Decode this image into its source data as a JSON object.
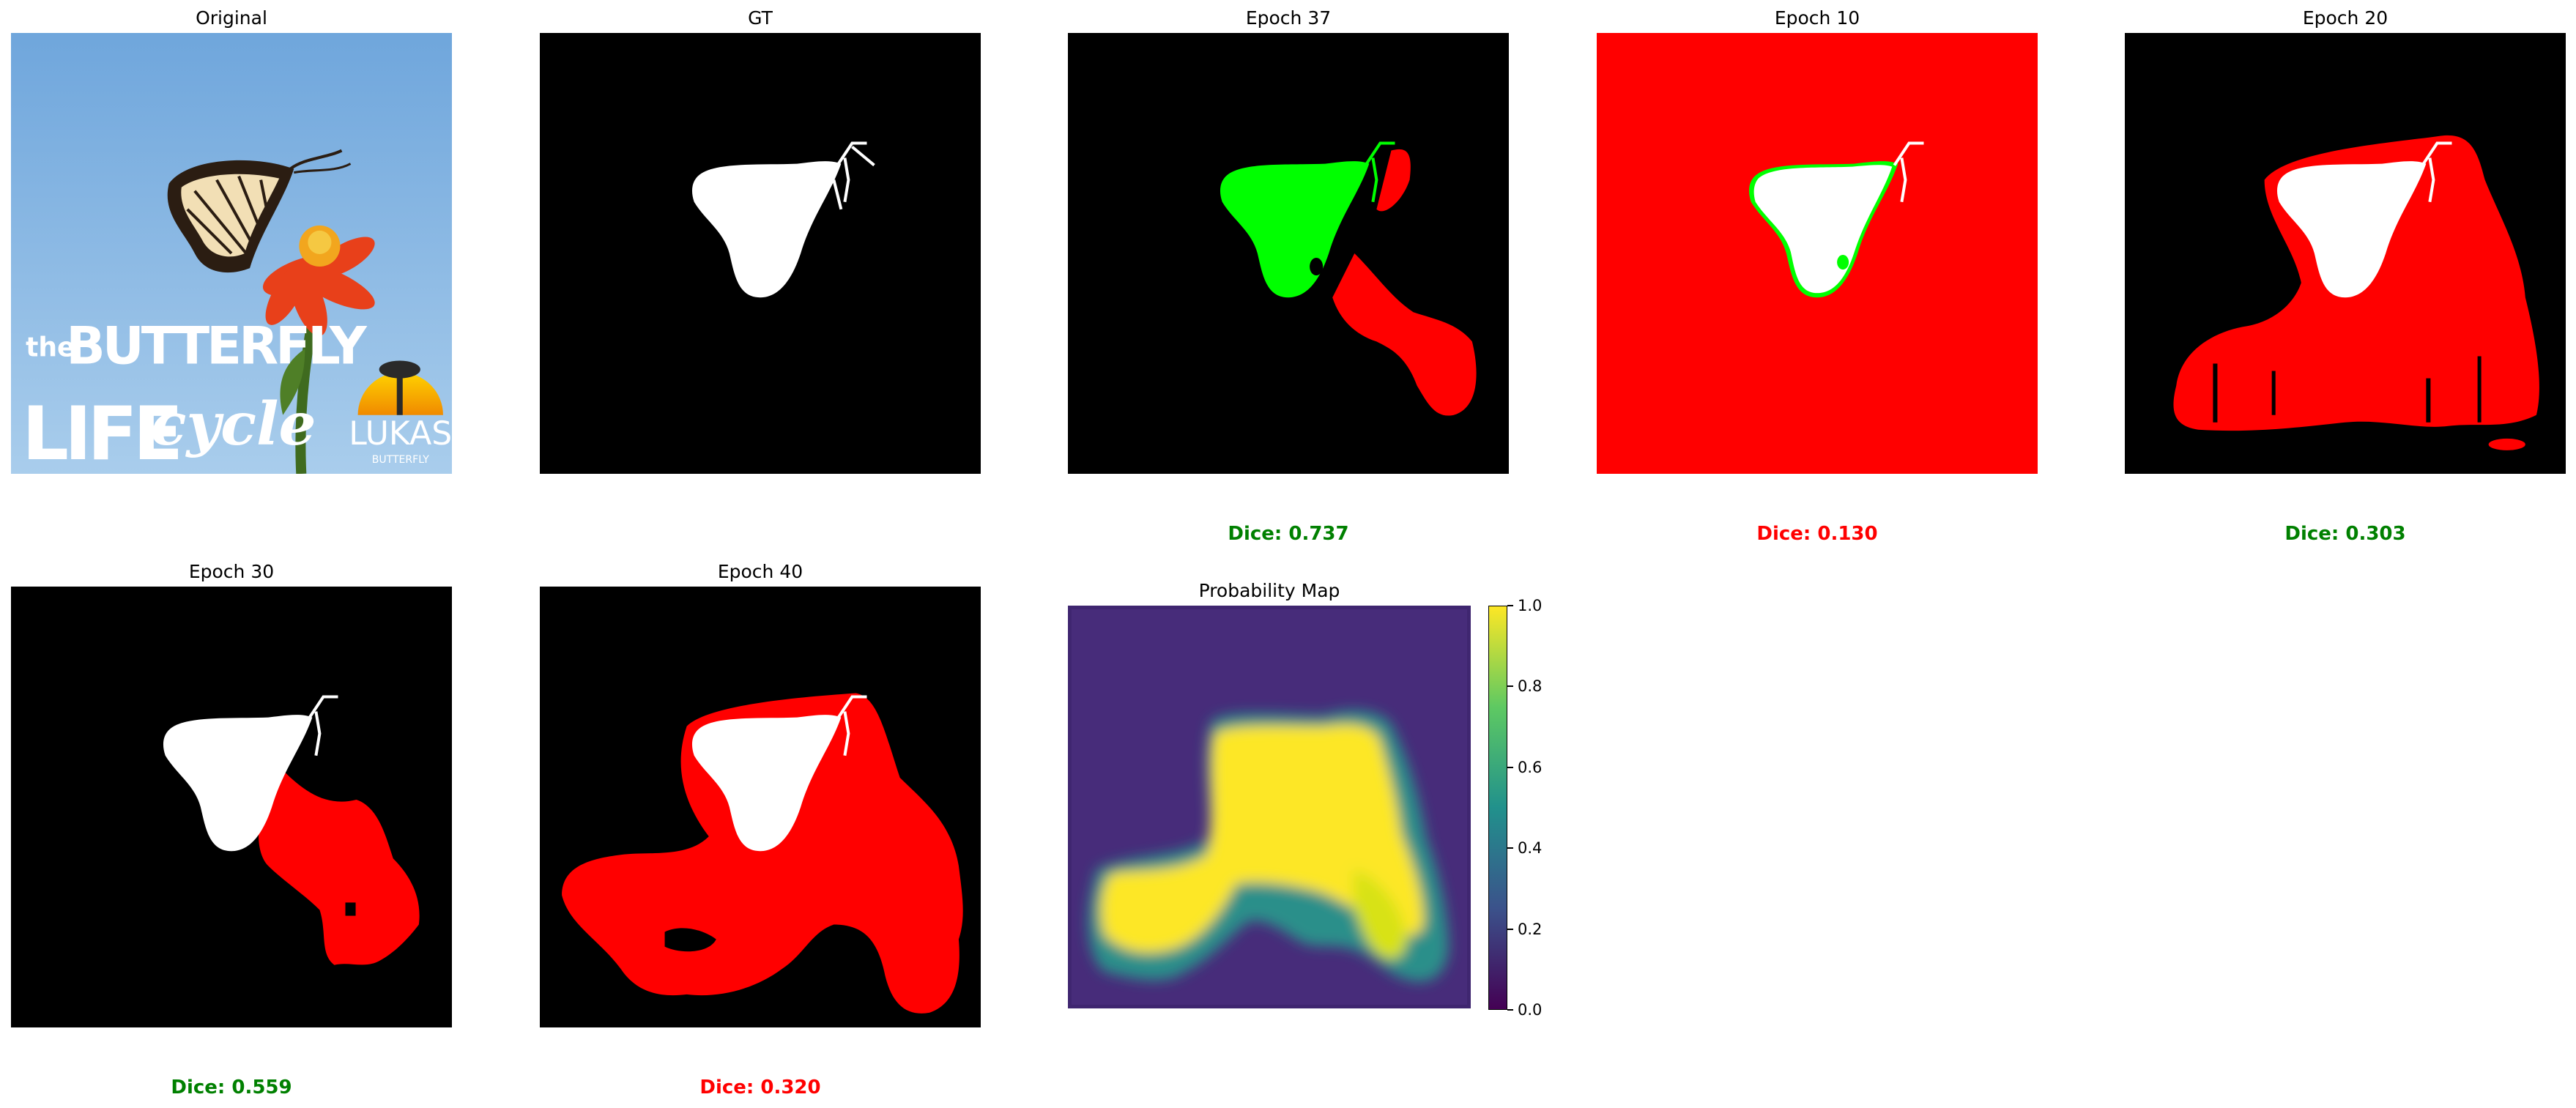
{
  "figure": {
    "panels": [
      {
        "key": "original",
        "title": "Original",
        "kind": "photo"
      },
      {
        "key": "gt",
        "title": "GT",
        "kind": "mask"
      },
      {
        "key": "e37",
        "title": "Epoch 37",
        "kind": "overlay",
        "dice": "Dice: 0.737",
        "dice_color": "#008000"
      },
      {
        "key": "e10",
        "title": "Epoch 10",
        "kind": "overlay",
        "dice": "Dice: 0.130",
        "dice_color": "#ff0000"
      },
      {
        "key": "e20",
        "title": "Epoch 20",
        "kind": "overlay",
        "dice": "Dice: 0.303",
        "dice_color": "#008000"
      },
      {
        "key": "e30",
        "title": "Epoch 30",
        "kind": "overlay",
        "dice": "Dice: 0.559",
        "dice_color": "#008000"
      },
      {
        "key": "e40",
        "title": "Epoch 40",
        "kind": "overlay",
        "dice": "Dice: 0.320",
        "dice_color": "#ff0000"
      },
      {
        "key": "prob",
        "title": "Probability Map",
        "kind": "heatmap"
      }
    ],
    "photo_text": {
      "line1a": "the",
      "line1b": "BUTTERFLY",
      "line2a": "LIFE",
      "line2b": "cycle",
      "logo": "LUKAS",
      "logo_sub": "BUTTERFLY"
    },
    "colorbar": {
      "ticks": [
        "0.0",
        "0.2",
        "0.4",
        "0.6",
        "0.8",
        "1.0"
      ],
      "colormap": "viridis",
      "range": [
        0.0,
        1.0
      ]
    },
    "colors": {
      "false_positive": "#ff0000",
      "true_positive": "#00ff00",
      "mask": "#ffffff",
      "background": "#000000",
      "dice_good": "#008000",
      "dice_bad": "#ff0000"
    }
  }
}
